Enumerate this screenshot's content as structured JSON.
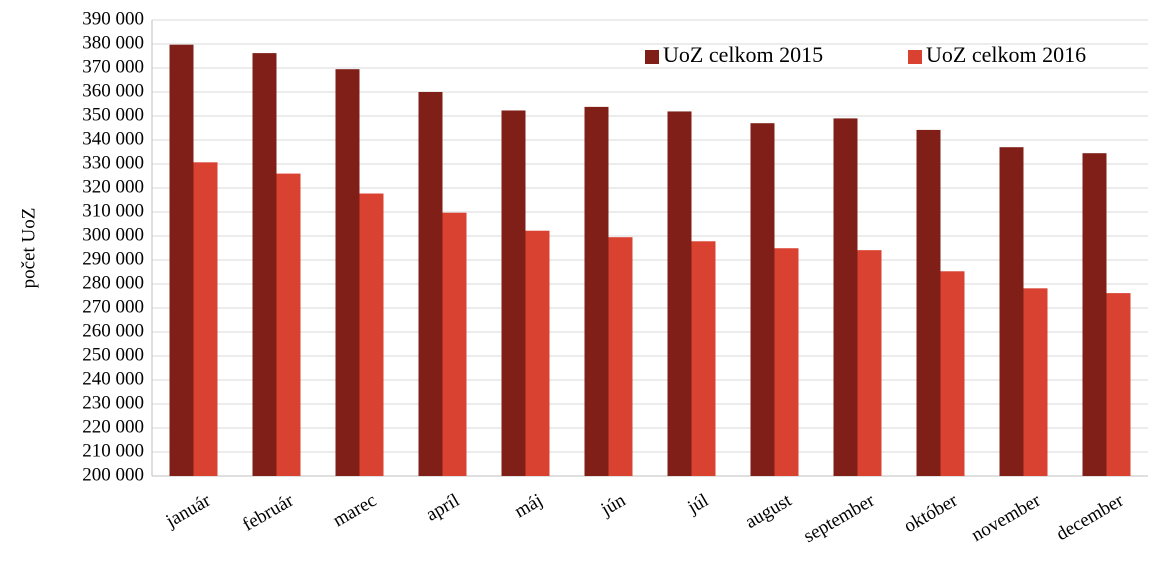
{
  "chart_data": {
    "type": "bar",
    "y_label": "počet UoZ",
    "categories": [
      "január",
      "február",
      "marec",
      "apríl",
      "máj",
      "jún",
      "júl",
      "august",
      "september",
      "október",
      "november",
      "december"
    ],
    "series": [
      {
        "name": "UoZ celkom 2015",
        "color": "#7f1f17",
        "values": [
          379700,
          376200,
          369500,
          360000,
          352300,
          353800,
          351900,
          347000,
          349000,
          344200,
          337000,
          334500
        ]
      },
      {
        "name": "UoZ celkom 2016",
        "color": "#d94130",
        "values": [
          330700,
          326000,
          317700,
          309700,
          302200,
          299500,
          297800,
          294900,
          294100,
          285300,
          278200,
          276200
        ]
      }
    ],
    "ylim": [
      200000,
      390000
    ],
    "yticks": [
      {
        "value": 200000,
        "label": "200 000"
      },
      {
        "value": 210000,
        "label": "210 000"
      },
      {
        "value": 220000,
        "label": "220 000"
      },
      {
        "value": 230000,
        "label": "230 000"
      },
      {
        "value": 240000,
        "label": "240 000"
      },
      {
        "value": 250000,
        "label": "250 000"
      },
      {
        "value": 260000,
        "label": "260 000"
      },
      {
        "value": 270000,
        "label": "270 000"
      },
      {
        "value": 280000,
        "label": "280 000"
      },
      {
        "value": 290000,
        "label": "290 000"
      },
      {
        "value": 300000,
        "label": "300 000"
      },
      {
        "value": 310000,
        "label": "310 000"
      },
      {
        "value": 320000,
        "label": "320 000"
      },
      {
        "value": 330000,
        "label": "330 000"
      },
      {
        "value": 340000,
        "label": "340 000"
      },
      {
        "value": 350000,
        "label": "350 000"
      },
      {
        "value": 360000,
        "label": "360 000"
      },
      {
        "value": 370000,
        "label": "370 000"
      },
      {
        "value": 380000,
        "label": "380 000"
      },
      {
        "value": 390000,
        "label": "390 000"
      }
    ],
    "grid": true,
    "legend": "top-right"
  }
}
